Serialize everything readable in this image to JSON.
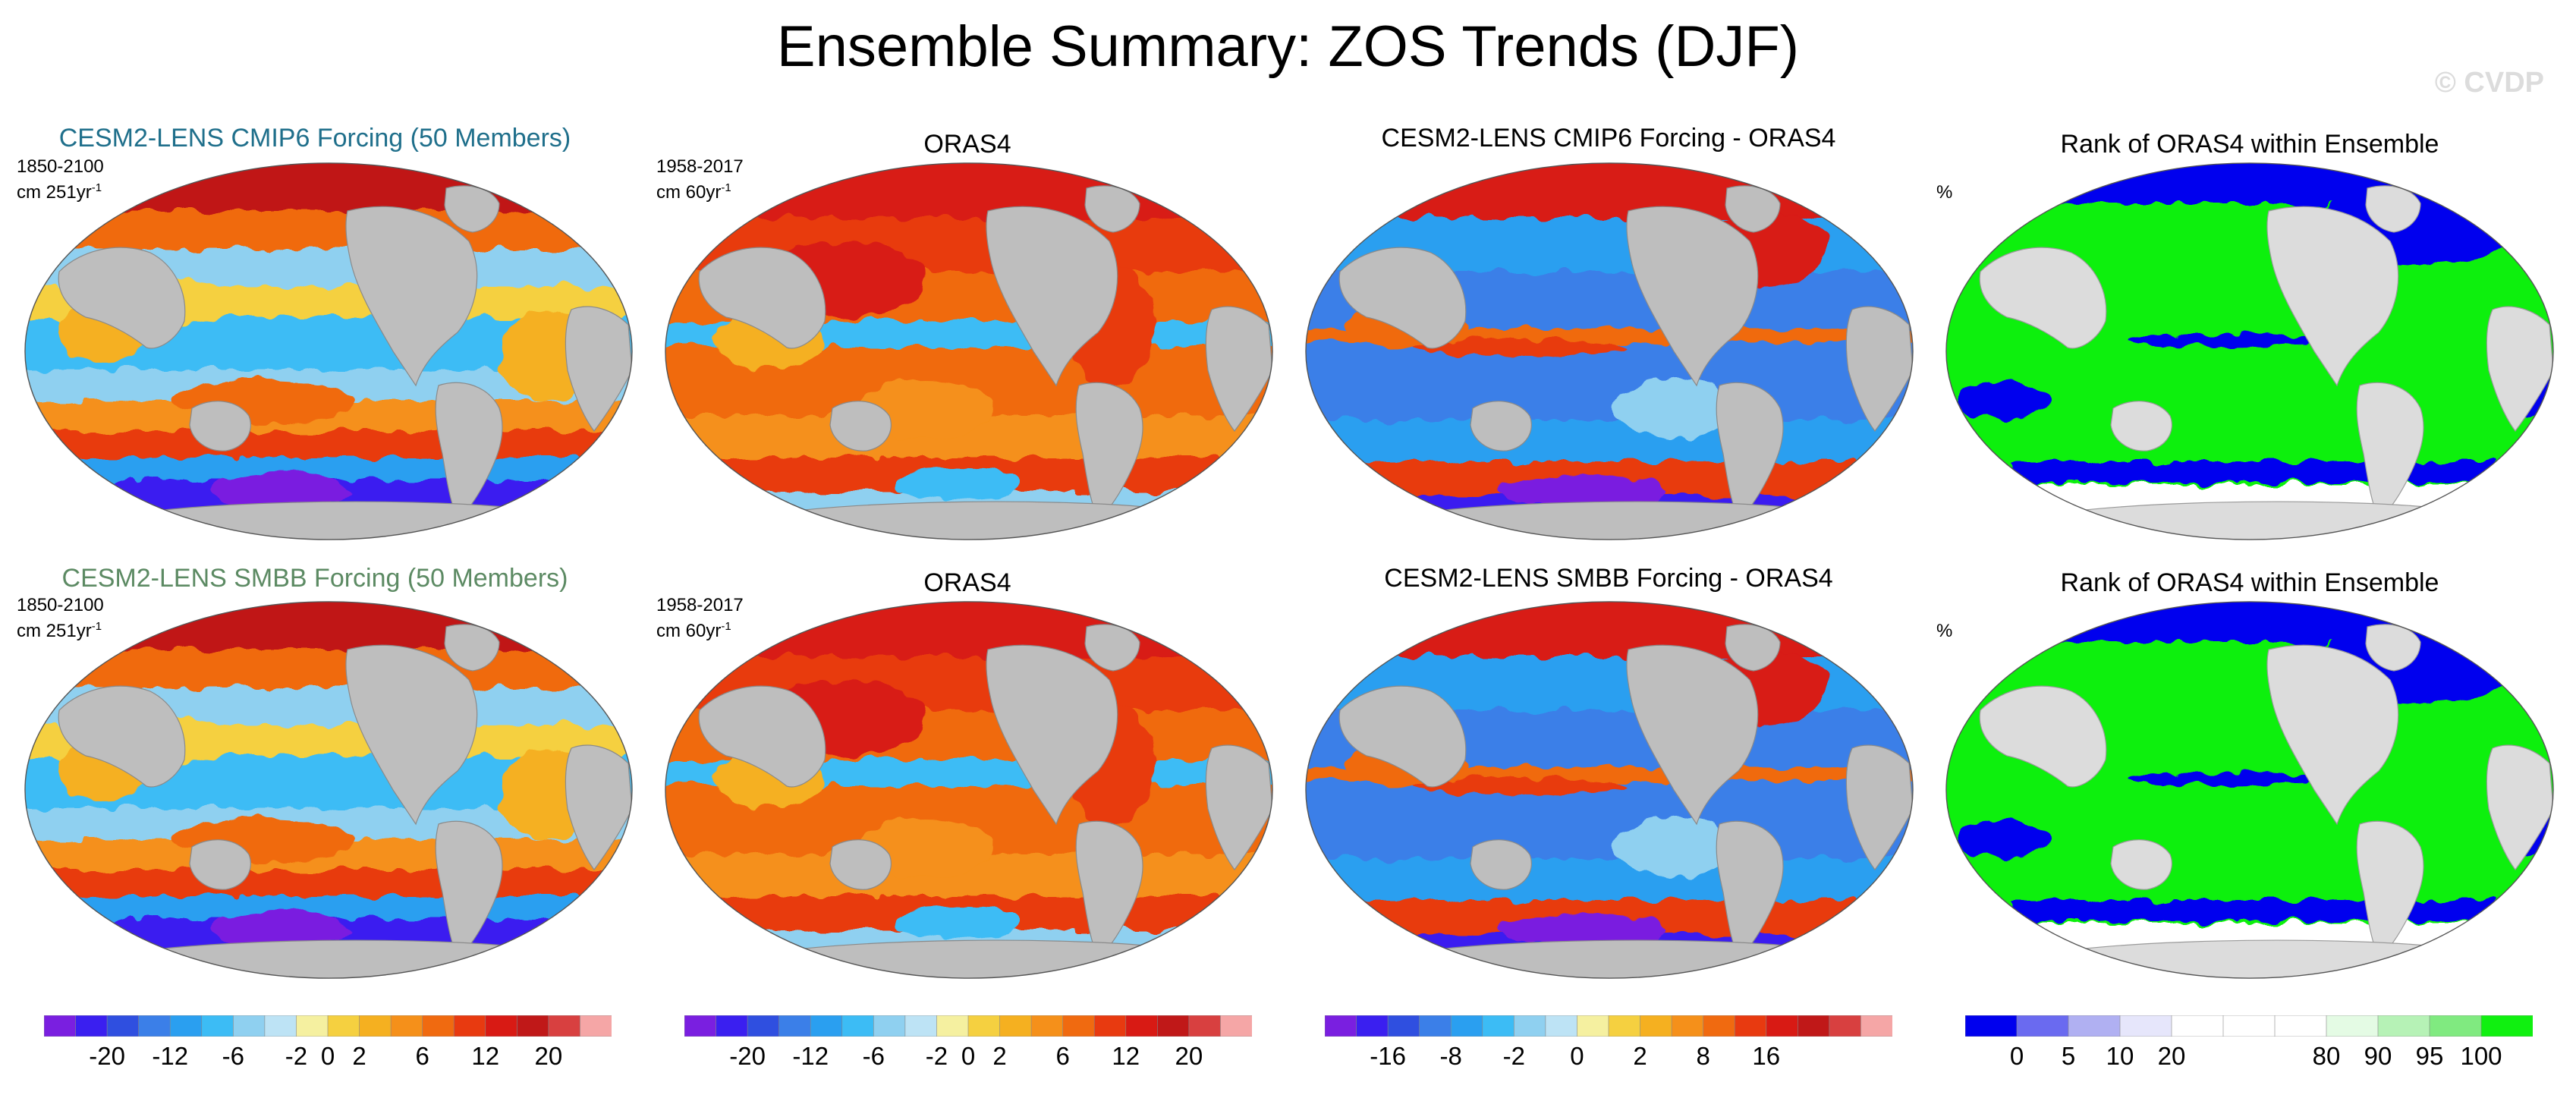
{
  "figure": {
    "title": "Ensemble Summary: ZOS Trends (DJF)",
    "credit": "© CVDP"
  },
  "rows": [
    {
      "ensemble_title": "CESM2-LENS CMIP6 Forcing (50 Members)",
      "ensemble_title_color": "#1f6f8b",
      "ensemble_years": "1850-2100",
      "ensemble_units": "cm 251yr",
      "obs_title": "ORAS4",
      "obs_years": "1958-2017",
      "obs_units": "cm 60yr",
      "diff_title": "CESM2-LENS CMIP6 Forcing - ORAS4",
      "rank_title": "Rank of ORAS4 within Ensemble",
      "rank_units": "%"
    },
    {
      "ensemble_title": "CESM2-LENS SMBB Forcing (50 Members)",
      "ensemble_title_color": "#5c8a63",
      "ensemble_years": "1850-2100",
      "ensemble_units": "cm 251yr",
      "obs_title": "ORAS4",
      "obs_years": "1958-2017",
      "obs_units": "cm 60yr",
      "diff_title": "CESM2-LENS SMBB Forcing - ORAS4",
      "rank_title": "Rank of ORAS4 within Ensemble",
      "rank_units": "%"
    }
  ],
  "superscript": "-1",
  "colorbars": {
    "trend": {
      "colors": [
        "#7a1fe0",
        "#3a1ff0",
        "#2f4fe0",
        "#3b7fe8",
        "#2a9ff0",
        "#3cbcf5",
        "#8fd0f0",
        "#bde3f5",
        "#f5f0a0",
        "#f5d040",
        "#f5b020",
        "#f5901a",
        "#f06a10",
        "#e83a10",
        "#d81a14",
        "#c01818",
        "#d84040",
        "#f5a6a6"
      ],
      "ticks": [
        {
          "label": "-20",
          "at": 2
        },
        {
          "label": "-12",
          "at": 4
        },
        {
          "label": "-6",
          "at": 6
        },
        {
          "label": "-2",
          "at": 8
        },
        {
          "label": "0",
          "at": 9
        },
        {
          "label": "2",
          "at": 10
        },
        {
          "label": "6",
          "at": 12
        },
        {
          "label": "12",
          "at": 14
        },
        {
          "label": "20",
          "at": 16
        }
      ]
    },
    "diff": {
      "colors": [
        "#7a1fe0",
        "#3a1ff0",
        "#2f4fe0",
        "#3b7fe8",
        "#2a9ff0",
        "#3cbcf5",
        "#8fd0f0",
        "#bde3f5",
        "#f5f0a0",
        "#f5d040",
        "#f5b020",
        "#f5901a",
        "#f06a10",
        "#e83a10",
        "#d81a14",
        "#c01818",
        "#d84040",
        "#f5a6a6"
      ],
      "ticks": [
        {
          "label": "-16",
          "at": 2
        },
        {
          "label": "-8",
          "at": 4
        },
        {
          "label": "-2",
          "at": 6
        },
        {
          "label": "0",
          "at": 8
        },
        {
          "label": "2",
          "at": 10
        },
        {
          "label": "8",
          "at": 12
        },
        {
          "label": "16",
          "at": 14
        }
      ]
    },
    "rank": {
      "colors": [
        "#0000ee",
        "#6a6af0",
        "#b0b0f2",
        "#e6e6fb",
        "#ffffff",
        "#ffffff",
        "#ffffff",
        "#e4fbe4",
        "#b6f2b6",
        "#80ea80",
        "#10f010"
      ],
      "bounds": [
        0,
        5,
        10,
        20,
        40,
        60,
        80,
        90,
        95,
        100
      ],
      "ticks": [
        {
          "label": "0",
          "at": 1
        },
        {
          "label": "5",
          "at": 2
        },
        {
          "label": "10",
          "at": 3
        },
        {
          "label": "20",
          "at": 4
        },
        {
          "label": "80",
          "at": 7
        },
        {
          "label": "90",
          "at": 8
        },
        {
          "label": "95",
          "at": 9
        },
        {
          "label": "100",
          "at": 10
        }
      ]
    }
  },
  "map_colors": {
    "land": "#bebebe",
    "land_light": "#dcdcdc",
    "rank_green": "#10f010",
    "rank_blue": "#0000ee"
  }
}
